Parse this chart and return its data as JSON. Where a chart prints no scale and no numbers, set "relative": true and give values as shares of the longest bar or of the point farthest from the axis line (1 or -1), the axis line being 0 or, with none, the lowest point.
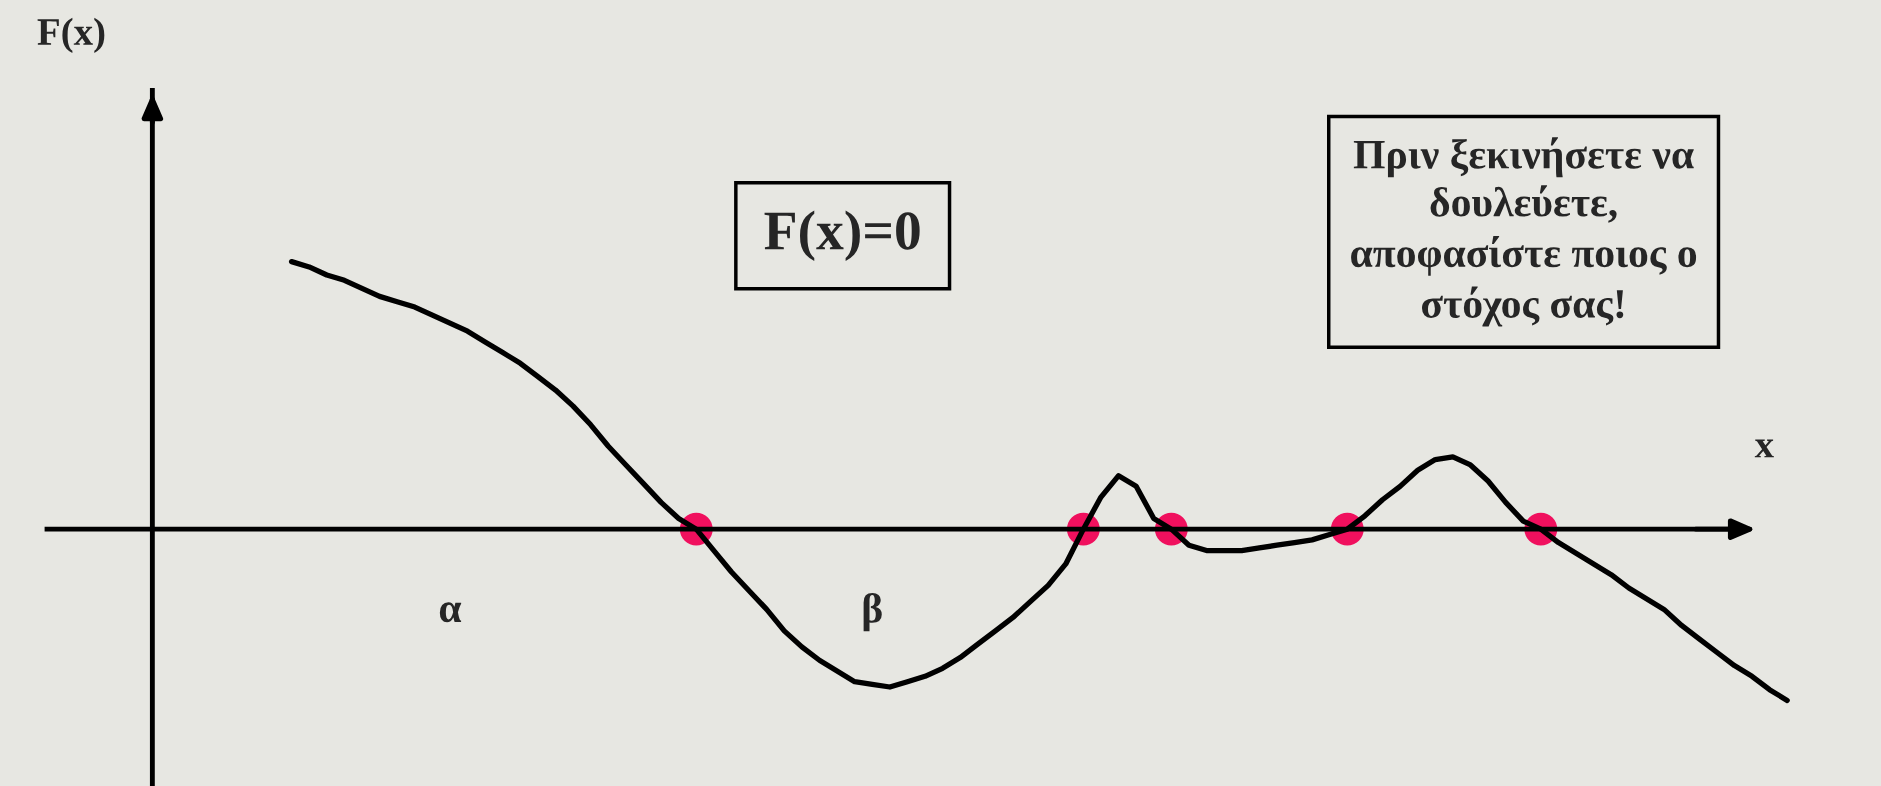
{
  "chart_data": {
    "type": "line",
    "relative": true,
    "xlabel": "x",
    "categories": [
      null,
      null,
      null,
      null,
      null,
      null,
      null,
      null,
      null,
      "α",
      null,
      null,
      null,
      null,
      null,
      null,
      null,
      null,
      null,
      null,
      null,
      null,
      null,
      null,
      null,
      null,
      null,
      null,
      null,
      null,
      null,
      null,
      null,
      "β",
      null,
      null,
      null,
      null,
      null,
      null,
      null,
      null,
      null,
      null,
      null,
      null,
      null,
      null,
      null,
      null,
      null,
      null,
      null,
      null,
      null,
      null,
      null,
      null,
      null,
      null,
      null,
      null,
      null,
      null,
      null,
      null,
      null,
      null,
      null,
      null,
      null,
      null,
      null,
      null,
      null,
      null,
      null,
      null,
      null,
      null,
      null,
      null,
      null,
      null,
      null,
      null
    ],
    "annotations": [
      "F(x)",
      "F(x)=0",
      "Πριν ξεκινήσετε να\nδουλεύετε,\nαποφασίστε ποιος ο\nστόχος σας!"
    ],
    "series": [
      {
        "color": "#000000",
        "values": [
          1.0,
          0.98,
          0.95,
          0.93,
          0.9,
          0.87,
          0.85,
          0.83,
          0.8,
          0.77,
          0.74,
          0.7,
          0.66,
          0.62,
          0.57,
          0.52,
          0.46,
          0.39,
          0.31,
          0.24,
          0.17,
          0.1,
          0.04,
          0,
          -0.08,
          -0.16,
          -0.23,
          -0.3,
          -0.38,
          -0.44,
          -0.49,
          -0.53,
          -0.57,
          -0.58,
          -0.59,
          -0.57,
          -0.55,
          -0.52,
          -0.48,
          -0.43,
          -0.38,
          -0.33,
          -0.27,
          -0.21,
          -0.13,
          0,
          0.12,
          0.2,
          0.16,
          0.04,
          0,
          -0.06,
          -0.08,
          -0.08,
          -0.08,
          -0.07,
          -0.06,
          -0.05,
          -0.04,
          -0.02,
          0,
          0.05,
          0.11,
          0.16,
          0.22,
          0.26,
          0.27,
          0.24,
          0.18,
          0.1,
          0.03,
          0,
          -0.05,
          -0.09,
          -0.13,
          -0.17,
          -0.22,
          -0.26,
          -0.3,
          -0.36,
          -0.41,
          -0.46,
          -0.51,
          -0.55,
          -0.6,
          -0.64
        ]
      },
      {
        "type": "scatter",
        "color": "#f0105e",
        "values": [
          null,
          null,
          null,
          null,
          null,
          null,
          null,
          null,
          null,
          null,
          null,
          null,
          null,
          null,
          null,
          null,
          null,
          null,
          null,
          null,
          null,
          null,
          null,
          0,
          null,
          null,
          null,
          null,
          null,
          null,
          null,
          null,
          null,
          null,
          null,
          null,
          null,
          null,
          null,
          null,
          null,
          null,
          null,
          null,
          null,
          0,
          null,
          null,
          null,
          null,
          0,
          null,
          null,
          null,
          null,
          null,
          null,
          null,
          null,
          null,
          0,
          null,
          null,
          null,
          null,
          null,
          null,
          null,
          null,
          null,
          null,
          0,
          null,
          null,
          null,
          null,
          null,
          null,
          null,
          null,
          null,
          null,
          null,
          null,
          null,
          null
        ]
      }
    ]
  }
}
